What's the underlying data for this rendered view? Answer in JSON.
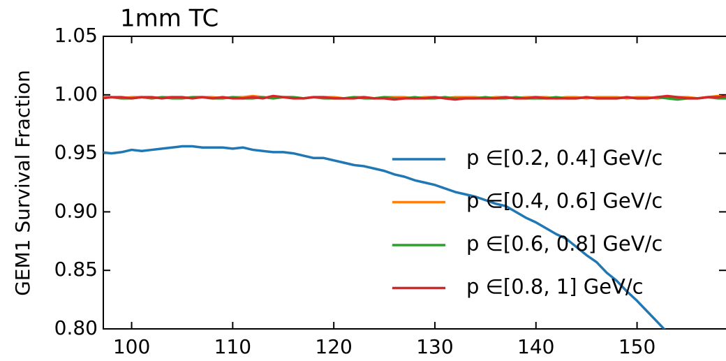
{
  "chart_data": {
    "type": "line",
    "title": "1mm TC",
    "y_label": "GEM1 Survival Fraction",
    "x": [
      97,
      98,
      99,
      100,
      101,
      102,
      103,
      104,
      105,
      106,
      107,
      108,
      109,
      110,
      111,
      112,
      113,
      114,
      115,
      116,
      117,
      118,
      119,
      120,
      121,
      122,
      123,
      124,
      125,
      126,
      127,
      128,
      129,
      130,
      131,
      132,
      133,
      134,
      135,
      136,
      137,
      138,
      139,
      140,
      141,
      142,
      143,
      144,
      145,
      146,
      147,
      148,
      149,
      150,
      151,
      152,
      153,
      154,
      155,
      156,
      157,
      158,
      159
    ],
    "series": [
      {
        "name": "p ∈[0.2, 0.4] GeV/c",
        "color": "#1f77b4",
        "values": [
          0.951,
          0.95,
          0.951,
          0.953,
          0.952,
          0.953,
          0.954,
          0.955,
          0.956,
          0.956,
          0.955,
          0.955,
          0.955,
          0.954,
          0.955,
          0.953,
          0.952,
          0.951,
          0.951,
          0.95,
          0.948,
          0.946,
          0.946,
          0.944,
          0.942,
          0.94,
          0.939,
          0.937,
          0.935,
          0.932,
          0.93,
          0.927,
          0.925,
          0.923,
          0.92,
          0.917,
          0.915,
          0.913,
          0.91,
          0.907,
          0.905,
          0.9,
          0.895,
          0.891,
          0.886,
          0.881,
          0.877,
          0.87,
          0.863,
          0.857,
          0.848,
          0.841,
          0.832,
          0.824,
          0.815,
          0.806,
          0.797,
          null,
          null,
          null,
          null,
          null,
          null
        ]
      },
      {
        "name": "p ∈[0.4, 0.6] GeV/c",
        "color": "#ff7f0e",
        "values": [
          0.998,
          0.998,
          0.997,
          0.998,
          0.998,
          0.997,
          0.998,
          0.998,
          0.997,
          0.998,
          0.998,
          0.998,
          0.997,
          0.998,
          0.998,
          0.999,
          0.998,
          0.997,
          0.998,
          0.998,
          0.997,
          0.998,
          0.998,
          0.998,
          0.997,
          0.998,
          0.998,
          0.997,
          0.998,
          0.998,
          0.998,
          0.997,
          0.998,
          0.998,
          0.997,
          0.998,
          0.998,
          0.998,
          0.997,
          0.998,
          0.998,
          0.997,
          0.998,
          0.998,
          0.998,
          0.997,
          0.998,
          0.998,
          0.997,
          0.998,
          0.998,
          0.998,
          0.997,
          0.998,
          0.998,
          0.997,
          0.998,
          0.998,
          0.998,
          0.997,
          0.998,
          0.999,
          0.998
        ]
      },
      {
        "name": "p ∈[0.6, 0.8] GeV/c",
        "color": "#2ca02c",
        "values": [
          0.997,
          0.998,
          0.997,
          0.997,
          0.998,
          0.997,
          0.998,
          0.997,
          0.997,
          0.998,
          0.998,
          0.997,
          0.997,
          0.998,
          0.997,
          0.997,
          0.998,
          0.997,
          0.998,
          0.998,
          0.997,
          0.998,
          0.997,
          0.997,
          0.997,
          0.998,
          0.997,
          0.997,
          0.998,
          0.997,
          0.997,
          0.998,
          0.997,
          0.997,
          0.998,
          0.997,
          0.997,
          0.997,
          0.998,
          0.997,
          0.997,
          0.998,
          0.997,
          0.997,
          0.997,
          0.998,
          0.997,
          0.997,
          0.998,
          0.997,
          0.997,
          0.997,
          0.998,
          0.997,
          0.997,
          0.998,
          0.997,
          0.996,
          0.997,
          0.997,
          0.998,
          0.997,
          0.997
        ]
      },
      {
        "name": "p ∈[0.8, 1] GeV/c",
        "color": "#d62728",
        "values": [
          0.997,
          0.998,
          0.998,
          0.997,
          0.998,
          0.998,
          0.997,
          0.998,
          0.998,
          0.997,
          0.998,
          0.997,
          0.998,
          0.997,
          0.997,
          0.998,
          0.997,
          0.999,
          0.998,
          0.997,
          0.997,
          0.998,
          0.998,
          0.997,
          0.997,
          0.997,
          0.998,
          0.997,
          0.997,
          0.996,
          0.997,
          0.997,
          0.997,
          0.998,
          0.997,
          0.996,
          0.997,
          0.997,
          0.997,
          0.997,
          0.998,
          0.997,
          0.997,
          0.998,
          0.997,
          0.997,
          0.997,
          0.997,
          0.998,
          0.997,
          0.997,
          0.997,
          0.998,
          0.997,
          0.997,
          0.998,
          0.999,
          0.998,
          0.997,
          0.997,
          0.998,
          0.998,
          0.999
        ]
      }
    ],
    "xlim": [
      97.2,
      158.8
    ],
    "ylim": [
      0.8,
      1.05
    ],
    "xticks": [
      100,
      110,
      120,
      130,
      140,
      150
    ],
    "yticks": [
      {
        "value": 0.8,
        "label": "0.80"
      },
      {
        "value": 0.85,
        "label": "0.85"
      },
      {
        "value": 0.9,
        "label": "0.90"
      },
      {
        "value": 0.95,
        "label": "0.95"
      },
      {
        "value": 1.0,
        "label": "1.00"
      },
      {
        "value": 1.05,
        "label": "1.05"
      }
    ],
    "legend": "lower right"
  }
}
